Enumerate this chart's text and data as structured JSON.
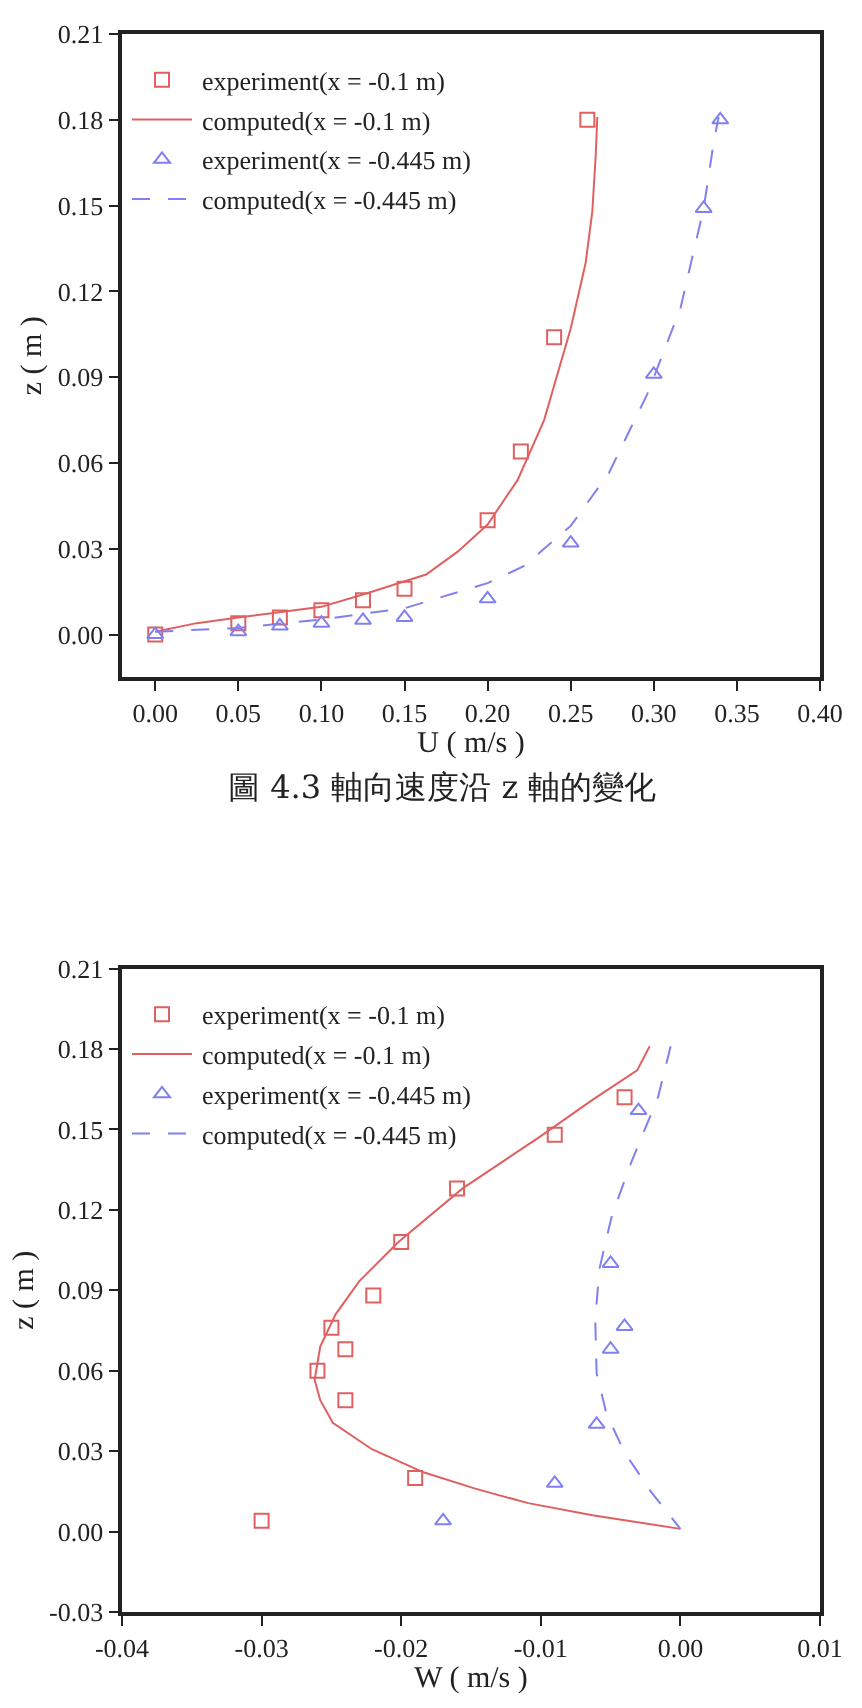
{
  "chart_data": [
    {
      "type": "scatter",
      "xlabel": "U ( m/s )",
      "ylabel": "z ( m )",
      "annotations": [
        "圖 4.3 軸向速度沿 z 軸的變化"
      ],
      "legend": "top left",
      "xlim": [
        -0.02,
        0.4
      ],
      "ylim": [
        -0.015,
        0.21
      ],
      "xticks": [
        {
          "value": 0,
          "label": "0.00"
        },
        {
          "value": 0.05,
          "label": "0.05"
        },
        {
          "value": 0.1,
          "label": "0.10"
        },
        {
          "value": 0.15,
          "label": "0.15"
        },
        {
          "value": 0.2,
          "label": "0.20"
        },
        {
          "value": 0.25,
          "label": "0.25"
        },
        {
          "value": 0.3,
          "label": "0.30"
        },
        {
          "value": 0.35,
          "label": "0.35"
        },
        {
          "value": 0.4,
          "label": "0.40"
        }
      ],
      "yticks": [
        {
          "value": 0,
          "label": "0.00"
        },
        {
          "value": 0.03,
          "label": "0.03"
        },
        {
          "value": 0.06,
          "label": "0.06"
        },
        {
          "value": 0.09,
          "label": "0.09"
        },
        {
          "value": 0.12,
          "label": "0.12"
        },
        {
          "value": 0.15,
          "label": "0.15"
        },
        {
          "value": 0.18,
          "label": "0.18"
        },
        {
          "value": 0.21,
          "label": "0.21"
        }
      ],
      "series": [
        {
          "name": "experiment(x = -0.1 m)",
          "type": "scatter",
          "marker": "square",
          "color": "#e06060",
          "x": [
            0,
            0.05,
            0.075,
            0.1,
            0.125,
            0.15,
            0.2,
            0.22,
            0.24,
            0.26
          ],
          "values": [
            0,
            0.004,
            0.006,
            0.0085,
            0.012,
            0.016,
            0.04,
            0.064,
            0.104,
            0.18
          ]
        },
        {
          "name": "computed(x = -0.1 m)",
          "type": "line",
          "line_style": "solid",
          "color": "#e06060",
          "x": [
            0,
            0.025,
            0.05,
            0.1,
            0.125,
            0.163,
            0.182,
            0.2,
            0.218,
            0.234,
            0.25,
            0.259,
            0.263,
            0.265,
            0.266
          ],
          "values": [
            0.001,
            0.004,
            0.006,
            0.0097,
            0.014,
            0.021,
            0.029,
            0.0385,
            0.054,
            0.075,
            0.107,
            0.13,
            0.148,
            0.167,
            0.181
          ]
        },
        {
          "name": "experiment(x = -0.445 m)",
          "type": "scatter",
          "marker": "triangle",
          "color": "#8080f0",
          "x": [
            0,
            0.05,
            0.075,
            0.1,
            0.125,
            0.15,
            0.2,
            0.25,
            0.3,
            0.33,
            0.34
          ],
          "values": [
            0,
            0.001,
            0.003,
            0.004,
            0.005,
            0.006,
            0.0125,
            0.032,
            0.091,
            0.149,
            0.18
          ]
        },
        {
          "name": "computed(x = -0.445 m)",
          "type": "line",
          "line_style": "dashed",
          "color": "#8080f0",
          "x": [
            0,
            0.05,
            0.1,
            0.15,
            0.2,
            0.222,
            0.25,
            0.273,
            0.296,
            0.316,
            0.33,
            0.336,
            0.339
          ],
          "values": [
            0.001,
            0.0023,
            0.0053,
            0.0092,
            0.018,
            0.024,
            0.038,
            0.0565,
            0.084,
            0.114,
            0.149,
            0.172,
            0.181
          ]
        }
      ]
    },
    {
      "type": "scatter",
      "xlabel": "W ( m/s )",
      "ylabel": "z ( m )",
      "legend": "top left",
      "xlim": [
        -0.04,
        0.01
      ],
      "ylim": [
        -0.03,
        0.21
      ],
      "xticks": [
        {
          "value": -0.04,
          "label": "-0.04"
        },
        {
          "value": -0.03,
          "label": "-0.03"
        },
        {
          "value": -0.02,
          "label": "-0.02"
        },
        {
          "value": -0.01,
          "label": "-0.01"
        },
        {
          "value": 0,
          "label": "0.00"
        },
        {
          "value": 0.01,
          "label": "0.01"
        }
      ],
      "yticks": [
        {
          "value": -0.03,
          "label": "-0.03"
        },
        {
          "value": 0,
          "label": "0.00"
        },
        {
          "value": 0.03,
          "label": "0.03"
        },
        {
          "value": 0.06,
          "label": "0.06"
        },
        {
          "value": 0.09,
          "label": "0.09"
        },
        {
          "value": 0.12,
          "label": "0.12"
        },
        {
          "value": 0.15,
          "label": "0.15"
        },
        {
          "value": 0.18,
          "label": "0.18"
        },
        {
          "value": 0.21,
          "label": "0.21"
        }
      ],
      "series": [
        {
          "name": "experiment(x = -0.1 m)",
          "type": "scatter",
          "marker": "square",
          "color": "#e06060",
          "x": [
            -0.004,
            -0.009,
            -0.016,
            -0.02,
            -0.022,
            -0.025,
            -0.024,
            -0.026,
            -0.024,
            -0.019,
            -0.03
          ],
          "values": [
            0.162,
            0.148,
            0.128,
            0.108,
            0.088,
            0.076,
            0.068,
            0.06,
            0.049,
            0.02,
            0.004
          ]
        },
        {
          "name": "computed(x = -0.1 m)",
          "type": "line",
          "line_style": "solid",
          "color": "#e06060",
          "x": [
            -0.0022,
            -0.0031,
            -0.0063,
            -0.01,
            -0.0156,
            -0.0202,
            -0.023,
            -0.0247,
            -0.0258,
            -0.0262,
            -0.0258,
            -0.0249,
            -0.0221,
            -0.0184,
            -0.0147,
            -0.0109,
            -0.0063,
            0
          ],
          "values": [
            0.181,
            0.172,
            0.161,
            0.1475,
            0.128,
            0.108,
            0.0934,
            0.081,
            0.069,
            0.0566,
            0.049,
            0.0406,
            0.0307,
            0.0221,
            0.016,
            0.0106,
            0.0061,
            0.001
          ]
        },
        {
          "name": "experiment(x = -0.445 m)",
          "type": "scatter",
          "marker": "triangle",
          "color": "#8080f0",
          "x": [
            -0.003,
            -0.005,
            -0.004,
            -0.005,
            -0.006,
            -0.009,
            -0.017
          ],
          "values": [
            0.157,
            0.1,
            0.0765,
            0.068,
            0.04,
            0.018,
            0.004
          ]
        },
        {
          "name": "computed(x = -0.445 m)",
          "type": "line",
          "line_style": "dashed",
          "color": "#8080f0",
          "x": [
            -0.0007,
            -0.0016,
            -0.0035,
            -0.0049,
            -0.0058,
            -0.0061,
            -0.006,
            -0.0053,
            -0.004,
            -0.0021,
            0
          ],
          "values": [
            0.181,
            0.162,
            0.138,
            0.118,
            0.098,
            0.079,
            0.059,
            0.044,
            0.0295,
            0.0148,
            0.001
          ]
        }
      ]
    }
  ]
}
